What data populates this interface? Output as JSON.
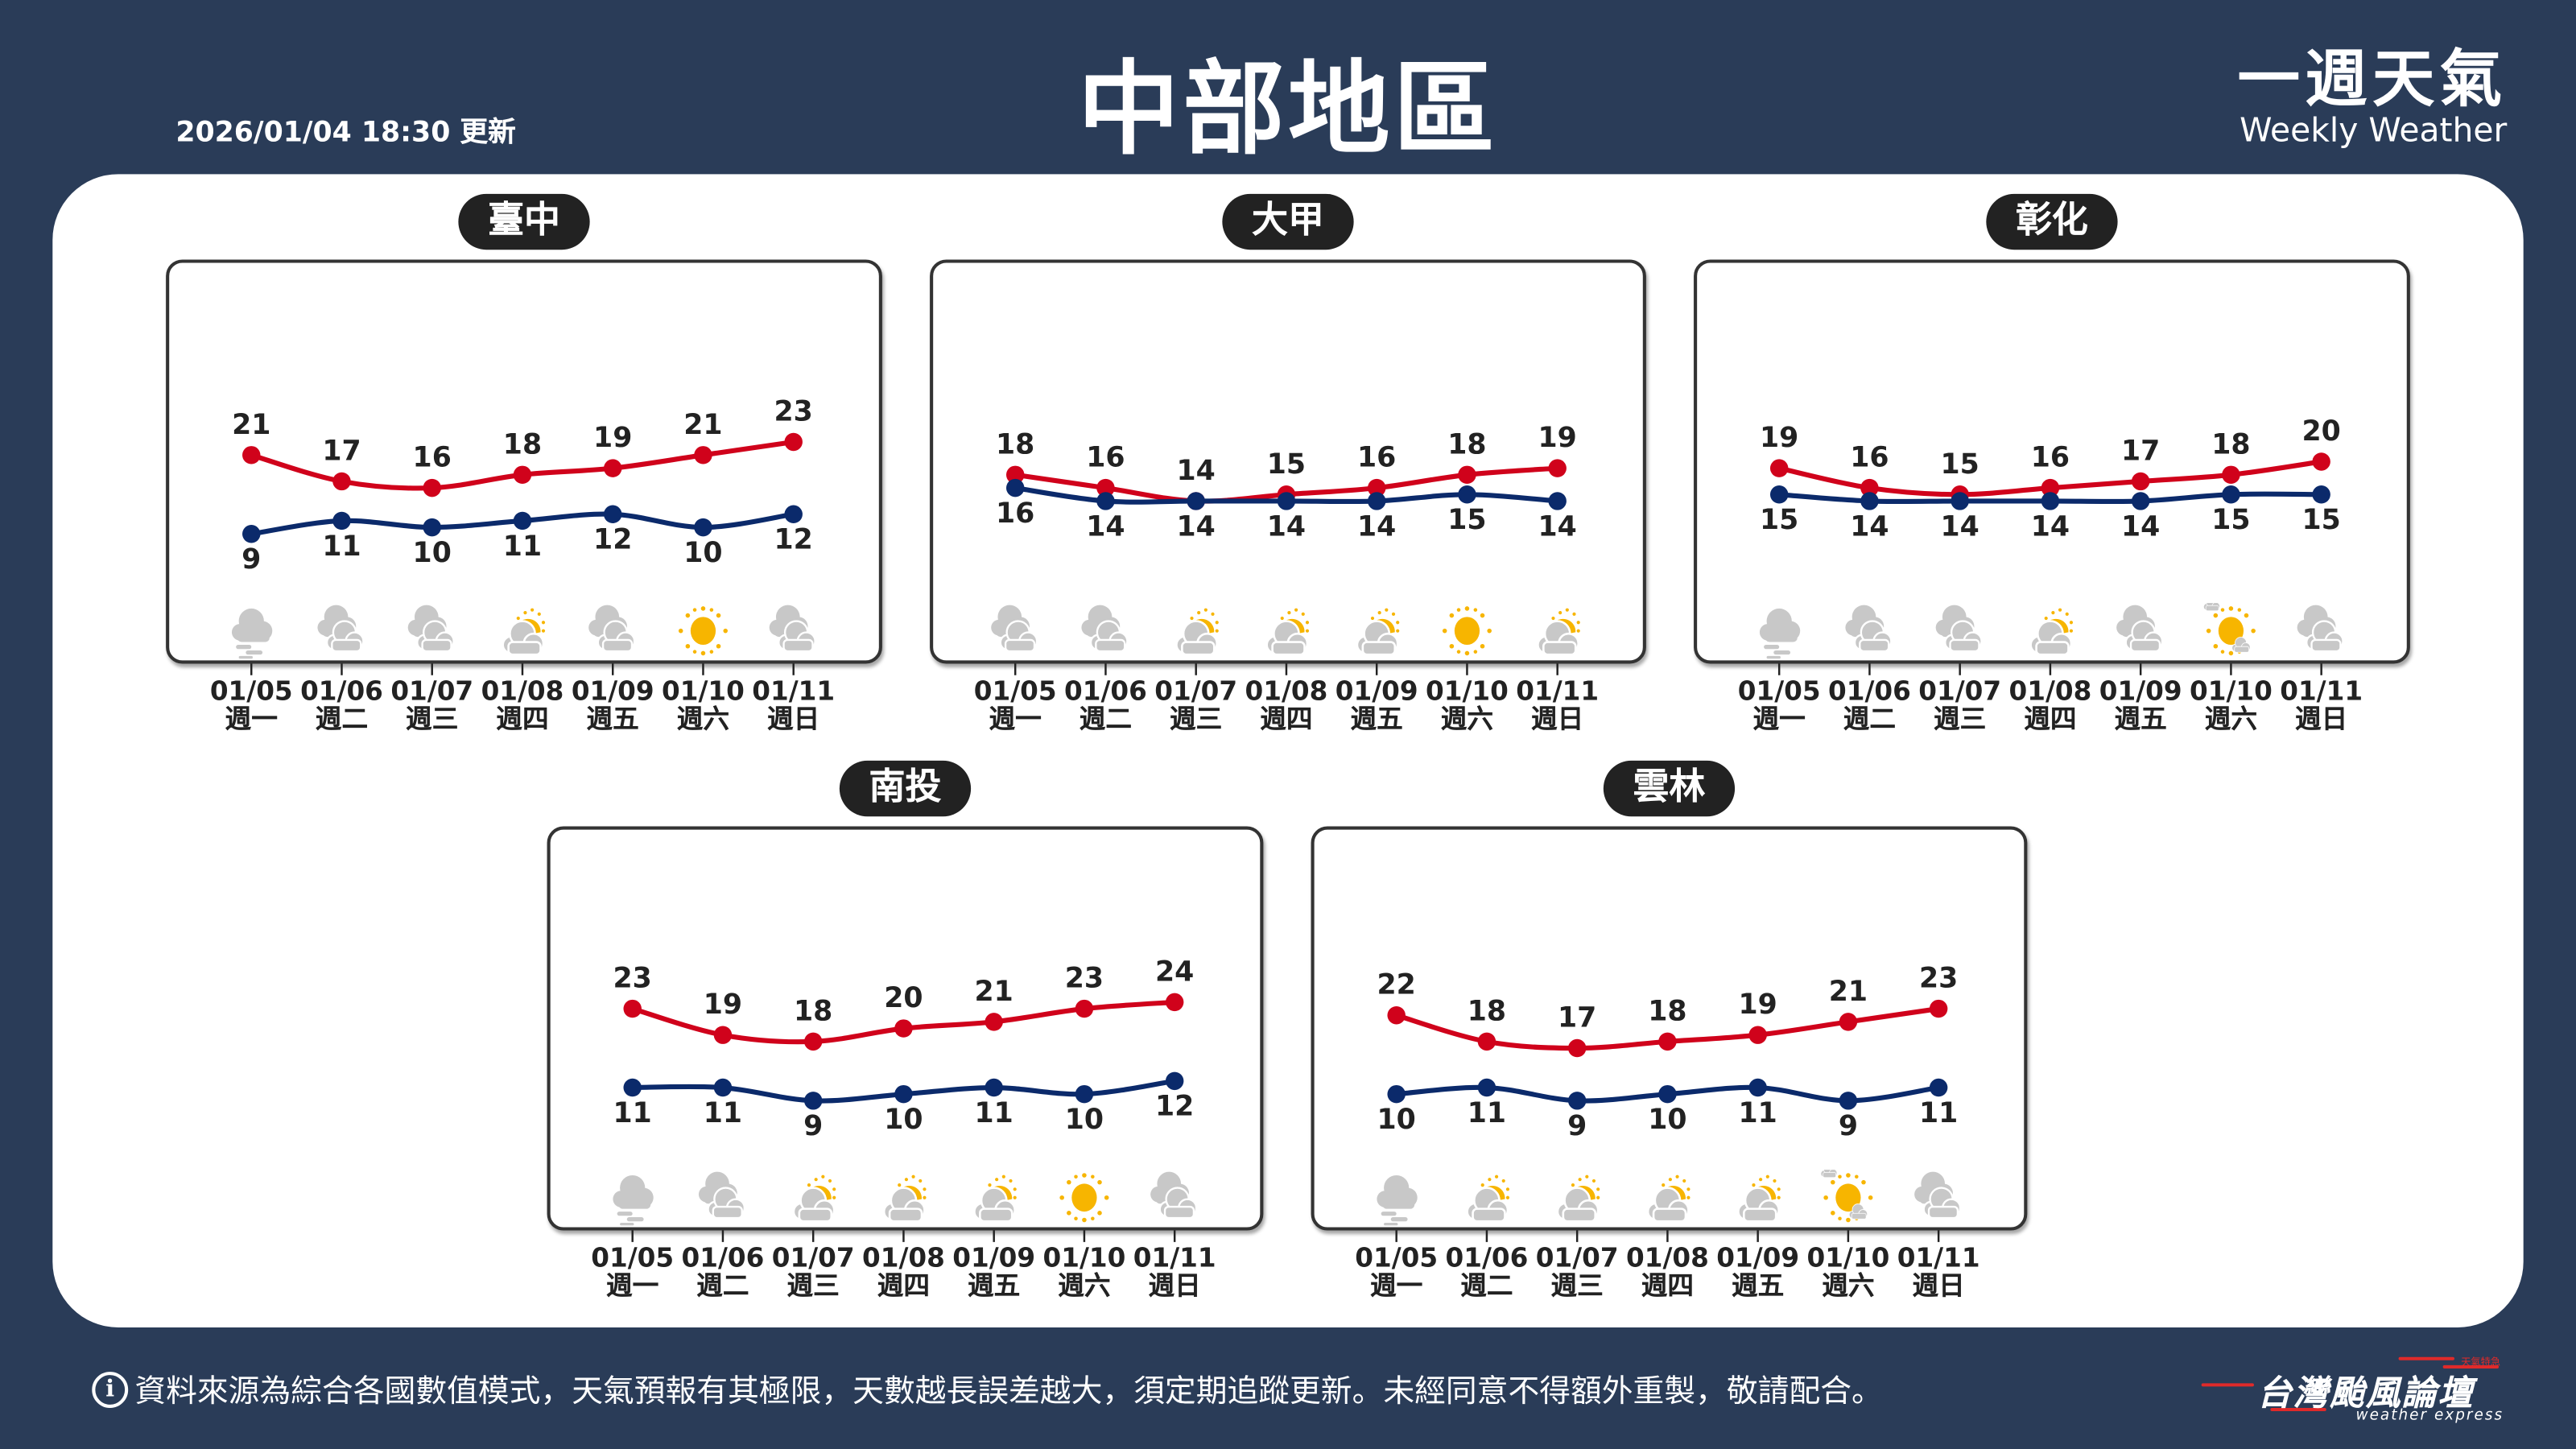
{
  "header": {
    "updated": "2026/01/04 18:30 更新",
    "title": "中部地區",
    "brand_zh": "一週天氣",
    "brand_en": "Weekly Weather"
  },
  "colors": {
    "background": "#2a3c58",
    "high": "#d0021b",
    "low": "#0b2a6b",
    "cloud": "#c8c8c8",
    "sun": "#f7b500"
  },
  "days": [
    {
      "date": "01/05",
      "weekday": "週一"
    },
    {
      "date": "01/06",
      "weekday": "週二"
    },
    {
      "date": "01/07",
      "weekday": "週三"
    },
    {
      "date": "01/08",
      "weekday": "週四"
    },
    {
      "date": "01/09",
      "weekday": "週五"
    },
    {
      "date": "01/10",
      "weekday": "週六"
    },
    {
      "date": "01/11",
      "weekday": "週日"
    }
  ],
  "regions": [
    {
      "name": "臺中",
      "highs": [
        21,
        17,
        16,
        18,
        19,
        21,
        23
      ],
      "lows": [
        9,
        11,
        10,
        11,
        12,
        10,
        12
      ],
      "icons": [
        "fog",
        "cloudy",
        "cloudy",
        "partly-cloudy",
        "cloudy",
        "sunny",
        "cloudy"
      ]
    },
    {
      "name": "大甲",
      "highs": [
        18,
        16,
        14,
        15,
        16,
        18,
        19
      ],
      "lows": [
        16,
        14,
        14,
        14,
        14,
        15,
        14
      ],
      "icons": [
        "cloudy",
        "cloudy",
        "partly-cloudy",
        "partly-cloudy",
        "partly-cloudy",
        "sunny",
        "partly-cloudy"
      ]
    },
    {
      "name": "彰化",
      "highs": [
        19,
        16,
        15,
        16,
        17,
        18,
        20
      ],
      "lows": [
        15,
        14,
        14,
        14,
        14,
        15,
        15
      ],
      "icons": [
        "fog",
        "cloudy",
        "cloudy",
        "partly-cloudy",
        "cloudy",
        "mostly-sunny",
        "cloudy"
      ]
    },
    {
      "name": "南投",
      "highs": [
        23,
        19,
        18,
        20,
        21,
        23,
        24
      ],
      "lows": [
        11,
        11,
        9,
        10,
        11,
        10,
        12
      ],
      "icons": [
        "fog",
        "cloudy",
        "partly-cloudy",
        "partly-cloudy",
        "partly-cloudy",
        "sunny",
        "cloudy"
      ]
    },
    {
      "name": "雲林",
      "highs": [
        22,
        18,
        17,
        18,
        19,
        21,
        23
      ],
      "lows": [
        10,
        11,
        9,
        10,
        11,
        9,
        11
      ],
      "icons": [
        "fog",
        "partly-cloudy",
        "partly-cloudy",
        "partly-cloudy",
        "partly-cloudy",
        "mostly-sunny",
        "cloudy"
      ]
    }
  ],
  "footer": {
    "info_icon": "i",
    "disclaimer": "資料來源為綜合各國數值模式，天氣預報有其極限，天數越長誤差越大，須定期追蹤更新。未經同意不得額外重製，敬請配合。"
  },
  "logo": {
    "zh": "台灣颱風論壇",
    "en": "weather express",
    "tag": "天氣特急"
  }
}
